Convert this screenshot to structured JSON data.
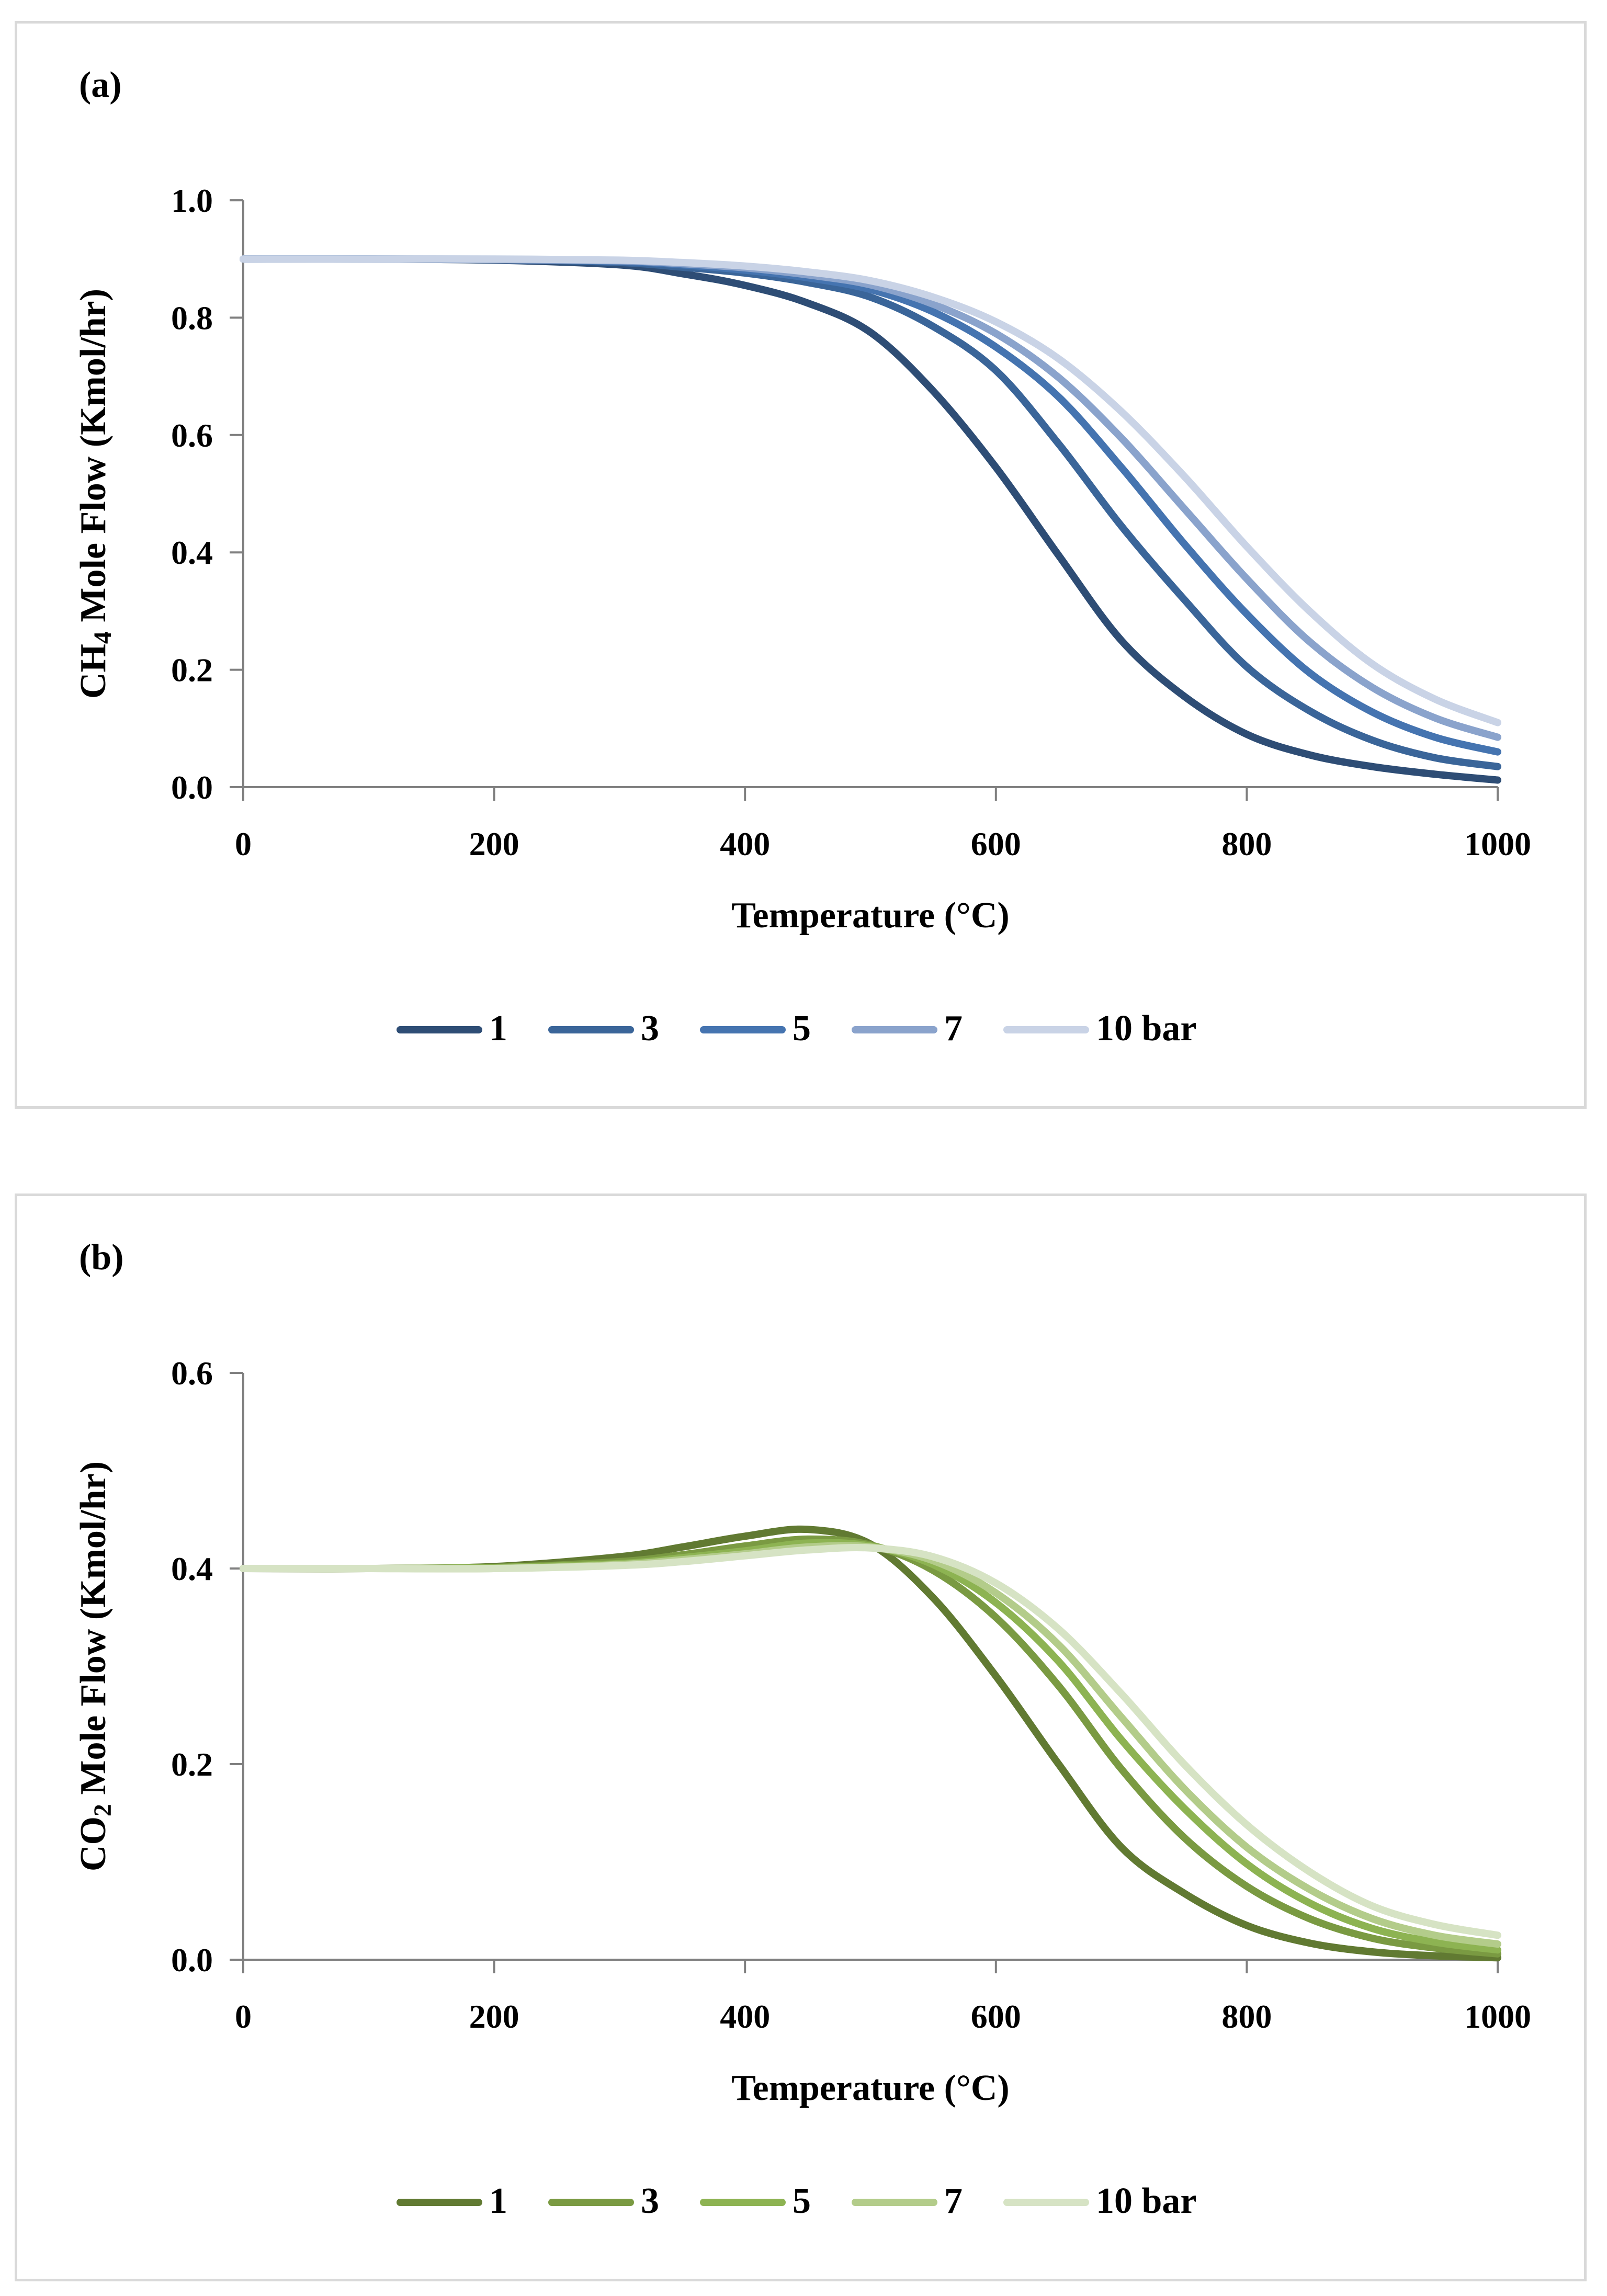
{
  "chart_data": [
    {
      "type": "line",
      "panel_label": "(a)",
      "title": "",
      "ylabel_prefix": "CH",
      "ylabel_sub": "4",
      "ylabel_suffix": " Mole Flow (Kmol/hr)",
      "xlabel": "Temperature (°C)",
      "xlim": [
        0,
        1000
      ],
      "ylim": [
        0,
        1.0
      ],
      "x_ticks": [
        "0",
        "200",
        "400",
        "600",
        "800",
        "1000"
      ],
      "x_tick_values": [
        0,
        200,
        400,
        600,
        800,
        1000
      ],
      "y_ticks": [
        "0.0",
        "0.2",
        "0.4",
        "0.6",
        "0.8",
        "1.0"
      ],
      "y_tick_values": [
        0,
        0.2,
        0.4,
        0.6,
        0.8,
        1.0
      ],
      "grid": false,
      "legend_position": "bottom-center",
      "x": [
        0,
        100,
        200,
        300,
        350,
        400,
        450,
        500,
        550,
        600,
        650,
        700,
        750,
        800,
        850,
        900,
        950,
        1000
      ],
      "series": [
        {
          "name": "1",
          "color": "#2e4d75",
          "values": [
            0.9,
            0.9,
            0.898,
            0.89,
            0.875,
            0.855,
            0.825,
            0.775,
            0.675,
            0.545,
            0.395,
            0.25,
            0.155,
            0.09,
            0.055,
            0.035,
            0.022,
            0.012
          ]
        },
        {
          "name": "3",
          "color": "#3a6599",
          "values": [
            0.9,
            0.9,
            0.899,
            0.894,
            0.886,
            0.876,
            0.86,
            0.835,
            0.785,
            0.71,
            0.585,
            0.445,
            0.32,
            0.205,
            0.13,
            0.08,
            0.05,
            0.035
          ]
        },
        {
          "name": "5",
          "color": "#4574b0",
          "values": [
            0.9,
            0.9,
            0.899,
            0.896,
            0.89,
            0.881,
            0.868,
            0.848,
            0.81,
            0.75,
            0.665,
            0.545,
            0.415,
            0.295,
            0.195,
            0.128,
            0.085,
            0.06
          ]
        },
        {
          "name": "7",
          "color": "#8aa3cc",
          "values": [
            0.9,
            0.9,
            0.899,
            0.897,
            0.892,
            0.885,
            0.873,
            0.856,
            0.823,
            0.773,
            0.698,
            0.595,
            0.475,
            0.355,
            0.248,
            0.17,
            0.118,
            0.085
          ]
        },
        {
          "name": "10 bar",
          "color": "#c9d3e6",
          "values": [
            0.9,
            0.9,
            0.9,
            0.898,
            0.894,
            0.888,
            0.878,
            0.863,
            0.835,
            0.793,
            0.73,
            0.64,
            0.53,
            0.41,
            0.3,
            0.21,
            0.15,
            0.11
          ]
        }
      ]
    },
    {
      "type": "line",
      "panel_label": "(b)",
      "title": "",
      "ylabel_prefix": "CO",
      "ylabel_sub": "2",
      "ylabel_suffix": " Mole Flow (Kmol/hr)",
      "xlabel": "Temperature (°C)",
      "xlim": [
        0,
        1000
      ],
      "ylim": [
        0,
        0.6
      ],
      "x_ticks": [
        "0",
        "200",
        "400",
        "600",
        "800",
        "1000"
      ],
      "x_tick_values": [
        0,
        200,
        400,
        600,
        800,
        1000
      ],
      "y_ticks": [
        "0.0",
        "0.2",
        "0.4",
        "0.6"
      ],
      "y_tick_values": [
        0,
        0.2,
        0.4,
        0.6
      ],
      "grid": false,
      "legend_position": "bottom-center",
      "x": [
        0,
        100,
        200,
        300,
        350,
        400,
        450,
        500,
        550,
        600,
        650,
        700,
        750,
        800,
        850,
        900,
        950,
        1000
      ],
      "series": [
        {
          "name": "1",
          "color": "#617a32",
          "values": [
            0.4,
            0.4,
            0.402,
            0.412,
            0.422,
            0.433,
            0.44,
            0.425,
            0.37,
            0.29,
            0.2,
            0.115,
            0.068,
            0.035,
            0.017,
            0.008,
            0.004,
            0.002
          ]
        },
        {
          "name": "3",
          "color": "#7a9a42",
          "values": [
            0.4,
            0.4,
            0.401,
            0.407,
            0.414,
            0.423,
            0.43,
            0.424,
            0.398,
            0.35,
            0.28,
            0.195,
            0.125,
            0.075,
            0.042,
            0.022,
            0.012,
            0.006
          ]
        },
        {
          "name": "5",
          "color": "#8db352",
          "values": [
            0.4,
            0.4,
            0.401,
            0.405,
            0.411,
            0.418,
            0.426,
            0.423,
            0.404,
            0.365,
            0.305,
            0.225,
            0.155,
            0.098,
            0.058,
            0.032,
            0.018,
            0.01
          ]
        },
        {
          "name": "7",
          "color": "#b3cc8a",
          "values": [
            0.4,
            0.4,
            0.4,
            0.404,
            0.409,
            0.415,
            0.422,
            0.422,
            0.408,
            0.375,
            0.322,
            0.248,
            0.175,
            0.115,
            0.072,
            0.042,
            0.025,
            0.016
          ]
        },
        {
          "name": "10 bar",
          "color": "#d6e3c4",
          "values": [
            0.4,
            0.4,
            0.4,
            0.403,
            0.407,
            0.413,
            0.419,
            0.421,
            0.412,
            0.385,
            0.338,
            0.272,
            0.2,
            0.138,
            0.09,
            0.055,
            0.036,
            0.025
          ]
        }
      ]
    }
  ]
}
